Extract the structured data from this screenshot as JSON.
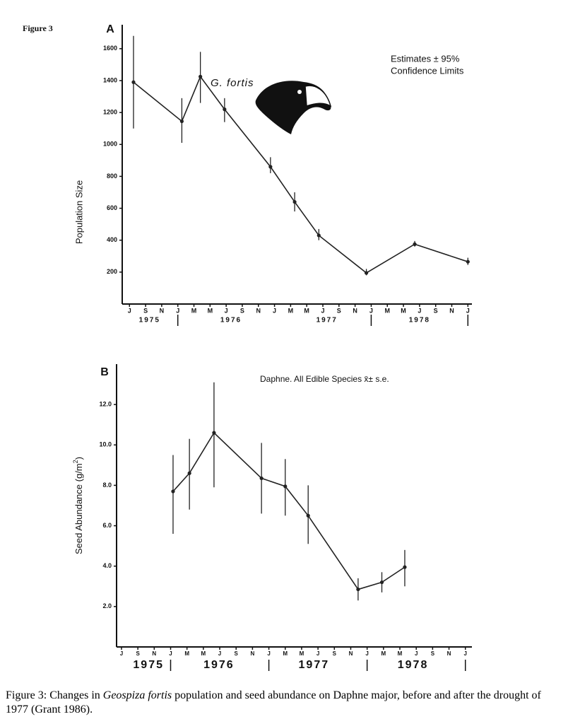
{
  "figure_label": "Figure 3",
  "chart_data": [
    {
      "type": "line",
      "panel": "A",
      "y_label": "Population Size",
      "inset_label": "G. fortis",
      "annotation": [
        "Estimates  ± 95%",
        "Confidence Limits"
      ],
      "color": "#222",
      "x": [
        0.5,
        6.5,
        8.8,
        11.8,
        17.5,
        20.5,
        23.5,
        29.4,
        35.4,
        42
      ],
      "values": [
        1390,
        1145,
        1425,
        1220,
        860,
        640,
        430,
        195,
        375,
        265
      ],
      "ci_low": [
        1100,
        1010,
        1260,
        1140,
        820,
        580,
        400,
        180,
        360,
        245
      ],
      "ci_high": [
        1680,
        1290,
        1580,
        1290,
        920,
        700,
        470,
        220,
        395,
        290
      ],
      "xlim": [
        -0.9,
        42.5
      ],
      "ylim": [
        0,
        1750
      ],
      "yticks": [
        200,
        400,
        600,
        800,
        1000,
        1200,
        1400,
        1600
      ],
      "xticks": [
        {
          "value": 0,
          "label": "J"
        },
        {
          "value": 2,
          "label": "S"
        },
        {
          "value": 4,
          "label": "N"
        },
        {
          "value": 6,
          "label": "J"
        },
        {
          "value": 8,
          "label": "M"
        },
        {
          "value": 10,
          "label": "M"
        },
        {
          "value": 12,
          "label": "J"
        },
        {
          "value": 14,
          "label": "S"
        },
        {
          "value": 16,
          "label": "N"
        },
        {
          "value": 18,
          "label": "J"
        },
        {
          "value": 20,
          "label": "M"
        },
        {
          "value": 22,
          "label": "M"
        },
        {
          "value": 24,
          "label": "J"
        },
        {
          "value": 26,
          "label": "S"
        },
        {
          "value": 28,
          "label": "N"
        },
        {
          "value": 30,
          "label": "J"
        },
        {
          "value": 32,
          "label": "M"
        },
        {
          "value": 34,
          "label": "M"
        },
        {
          "value": 36,
          "label": "J"
        },
        {
          "value": 38,
          "label": "S"
        },
        {
          "value": 40,
          "label": "N"
        },
        {
          "value": 42,
          "label": "J"
        }
      ],
      "year_ticks": [
        {
          "value": 2.5,
          "label": "1975"
        },
        {
          "value": 12.6,
          "label": "1976"
        },
        {
          "value": 24.5,
          "label": "1977"
        },
        {
          "value": 36,
          "label": "1978"
        }
      ],
      "year_dividers": [
        6,
        30,
        42
      ]
    },
    {
      "type": "line",
      "panel": "B",
      "y_label": [
        "Seed Abundance (g/m",
        "2",
        ")"
      ],
      "annotation": [
        "Daphne. All Edible Species x̄± s.e."
      ],
      "color": "#222",
      "x": [
        6.3,
        8.3,
        11.3,
        17.1,
        20,
        22.8,
        28.9,
        31.8,
        34.6
      ],
      "values": [
        7.7,
        8.6,
        10.6,
        8.35,
        7.95,
        6.5,
        2.85,
        3.2,
        3.95
      ],
      "ci_low": [
        5.6,
        6.8,
        7.9,
        6.6,
        6.5,
        5.1,
        2.3,
        2.7,
        3.0
      ],
      "ci_high": [
        9.5,
        10.3,
        13.1,
        10.1,
        9.3,
        8.0,
        3.4,
        3.7,
        4.8
      ],
      "xlim": [
        -0.6,
        42.8
      ],
      "ylim": [
        0,
        14
      ],
      "yticks": [
        {
          "value": 2,
          "label": "2.0"
        },
        {
          "value": 4,
          "label": "4.0"
        },
        {
          "value": 6,
          "label": "6.0"
        },
        {
          "value": 8,
          "label": "8.0"
        },
        {
          "value": 10,
          "label": "10.0"
        },
        {
          "value": 12,
          "label": "12.0"
        }
      ],
      "xticks": [
        {
          "value": 0,
          "label": "J"
        },
        {
          "value": 2,
          "label": "S"
        },
        {
          "value": 4,
          "label": "N"
        },
        {
          "value": 6,
          "label": "J"
        },
        {
          "value": 8,
          "label": "M"
        },
        {
          "value": 10,
          "label": "M"
        },
        {
          "value": 12,
          "label": "J"
        },
        {
          "value": 14,
          "label": "S"
        },
        {
          "value": 16,
          "label": "N"
        },
        {
          "value": 18,
          "label": "J"
        },
        {
          "value": 20,
          "label": "M"
        },
        {
          "value": 22,
          "label": "M"
        },
        {
          "value": 24,
          "label": "J"
        },
        {
          "value": 26,
          "label": "S"
        },
        {
          "value": 28,
          "label": "N"
        },
        {
          "value": 30,
          "label": "J"
        },
        {
          "value": 32,
          "label": "M"
        },
        {
          "value": 34,
          "label": "M"
        },
        {
          "value": 36,
          "label": "J"
        },
        {
          "value": 38,
          "label": "S"
        },
        {
          "value": 40,
          "label": "N"
        },
        {
          "value": 42,
          "label": "J"
        }
      ],
      "year_ticks": [
        {
          "value": 3.3,
          "label": "1975"
        },
        {
          "value": 11.9,
          "label": "1976"
        },
        {
          "value": 23.5,
          "label": "1977"
        },
        {
          "value": 35.6,
          "label": "1978"
        }
      ],
      "year_dividers": [
        6,
        18,
        30,
        42
      ]
    }
  ],
  "caption": [
    "Figure 3: Changes in ",
    "Geospiza fortis",
    " population and seed abundance on Daphne major, before and after the drought of 1977 (Grant 1986)."
  ]
}
